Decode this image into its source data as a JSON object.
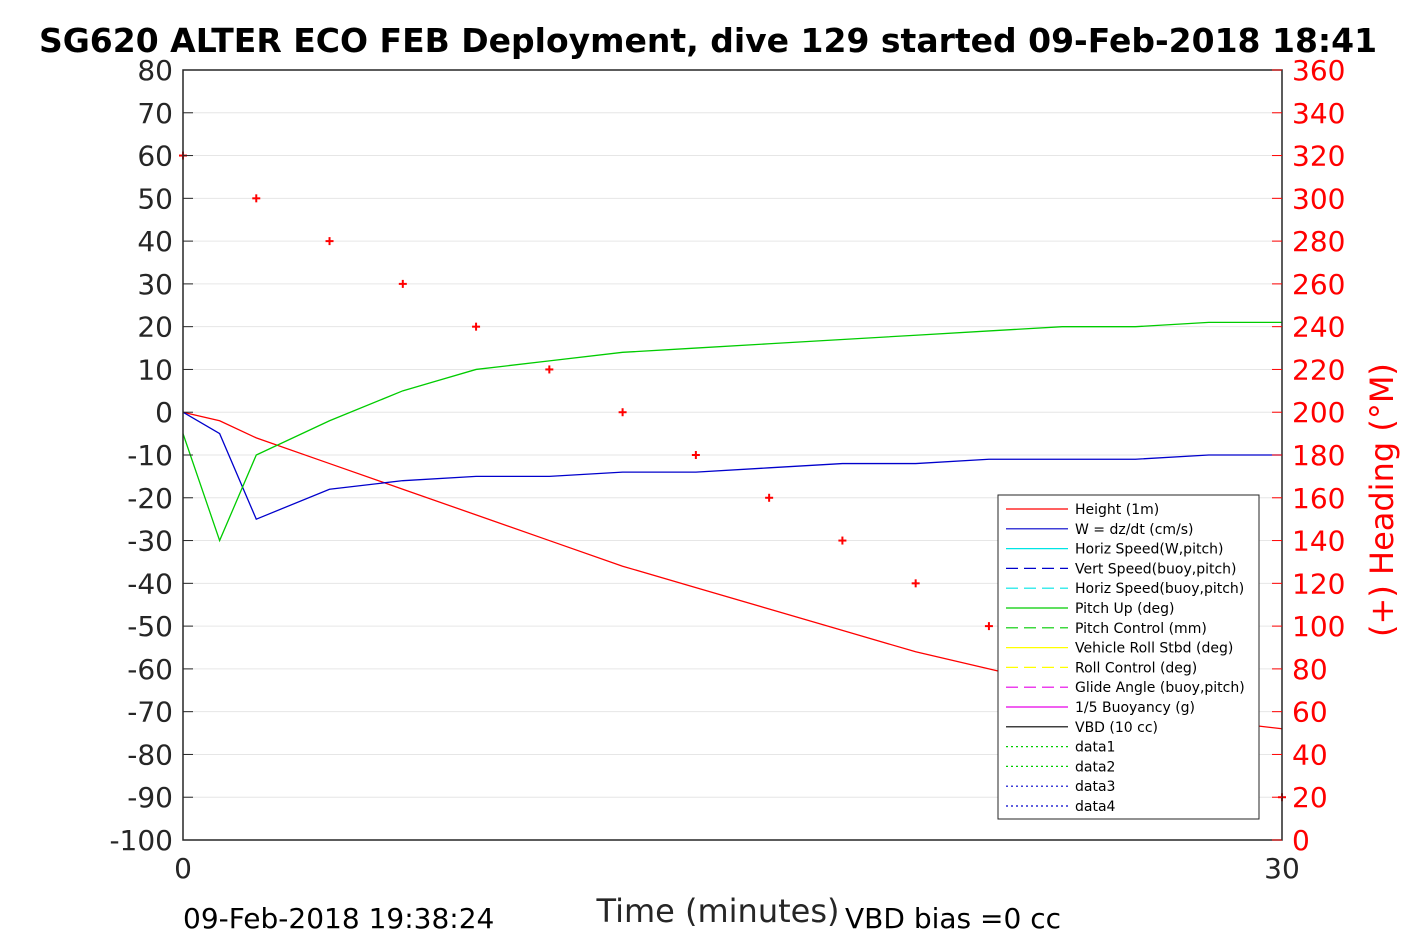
{
  "title": "SG620 ALTER ECO FEB Deployment, dive 129 started 09-Feb-2018 18:41",
  "footer": {
    "end_time": "09-Feb-2018 19:38:24",
    "vbd_bias": "VBD bias =0 cc"
  },
  "colors": {
    "height": "#ff0000",
    "w": "#0000cc",
    "horiz": "#00e5e5",
    "pitch": "#00cc00",
    "roll": "#ffff00",
    "glide": "#e600e6",
    "vbd": "#000000",
    "heading": "#ff0000",
    "grid": "#e6e6e6"
  },
  "chart_data": {
    "type": "line",
    "title": "SG620 ALTER ECO FEB Deployment, dive 129 started 09-Feb-2018 18:41",
    "xlabel": "Time (minutes)",
    "ylabel_left": "",
    "ylabel_right": "(+) Heading (°M)",
    "xlim": [
      0,
      30
    ],
    "ylim": [
      -100,
      80
    ],
    "ylim_right": [
      0,
      360
    ],
    "x_ticks": [
      "0",
      "30"
    ],
    "y_ticks": [
      "80",
      "70",
      "60",
      "50",
      "40",
      "30",
      "20",
      "10",
      "0",
      "-10",
      "-20",
      "-30",
      "-40",
      "-50",
      "-60",
      "-70",
      "-80",
      "-90",
      "-100"
    ],
    "y_right_ticks": [
      "360",
      "340",
      "320",
      "300",
      "280",
      "260",
      "240",
      "220",
      "200",
      "180",
      "160",
      "140",
      "120",
      "100",
      "80",
      "60",
      "40",
      "20",
      "0"
    ],
    "grid": true,
    "legend_position": "lower-right",
    "legend": [
      "Height (1m)",
      "W = dz/dt (cm/s)",
      "Horiz Speed(W,pitch)",
      "Vert Speed(buoy,pitch)",
      "Horiz Speed(buoy,pitch)",
      "Pitch Up (deg)",
      "Pitch Control (mm)",
      "Vehicle Roll Stbd (deg)",
      "Roll Control (deg)",
      "Glide Angle (buoy,pitch)",
      "1/5 Buoyancy (g)",
      "VBD (10 cc)",
      "data1",
      "data2",
      "data3",
      "data4"
    ],
    "series": [
      {
        "name": "Height (1m)",
        "x": [
          0,
          1,
          2,
          4,
          6,
          8,
          10,
          12,
          14,
          16,
          18,
          20,
          22,
          24,
          26,
          28,
          30
        ],
        "y": [
          0,
          -2,
          -6,
          -12,
          -18,
          -24,
          -30,
          -36,
          -41,
          -46,
          -51,
          -56,
          -60,
          -64,
          -68,
          -72,
          -74
        ]
      },
      {
        "name": "W = dz/dt (cm/s)",
        "x": [
          0,
          1,
          2,
          4,
          6,
          8,
          10,
          12,
          14,
          16,
          18,
          20,
          22,
          24,
          26,
          28,
          30
        ],
        "y": [
          0,
          -5,
          -25,
          -18,
          -16,
          -15,
          -15,
          -14,
          -14,
          -13,
          -12,
          -12,
          -11,
          -11,
          -11,
          -10,
          -10
        ]
      },
      {
        "name": "Pitch Up (deg)",
        "x": [
          0,
          1,
          2,
          4,
          6,
          8,
          10,
          12,
          14,
          16,
          18,
          20,
          22,
          24,
          26,
          28,
          30
        ],
        "y": [
          -5,
          -30,
          -10,
          -2,
          5,
          10,
          12,
          14,
          15,
          16,
          17,
          18,
          19,
          20,
          20,
          21,
          21
        ]
      }
    ],
    "heading_markers": {
      "x": [
        0,
        2,
        4,
        6,
        8,
        10,
        12,
        14,
        16,
        18,
        20,
        22,
        24,
        26,
        28,
        30
      ],
      "y": [
        320,
        300,
        280,
        260,
        240,
        220,
        200,
        180,
        160,
        140,
        120,
        100,
        80,
        60,
        40,
        20
      ]
    }
  }
}
